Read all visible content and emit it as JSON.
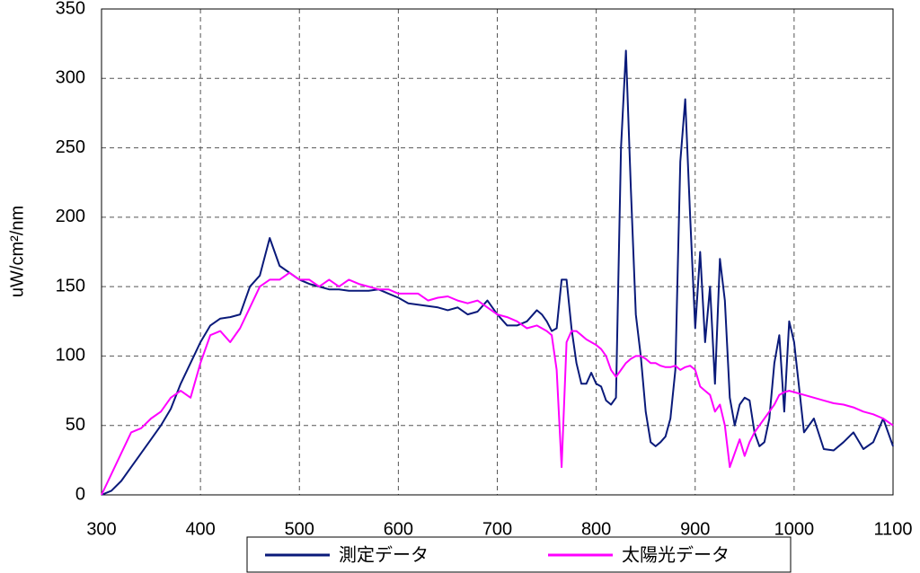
{
  "chart_data": {
    "type": "line",
    "y_label": "uW/cm²/nm",
    "x": [
      300,
      310,
      320,
      330,
      340,
      350,
      360,
      370,
      380,
      390,
      400,
      410,
      420,
      430,
      440,
      450,
      460,
      470,
      480,
      490,
      500,
      510,
      520,
      530,
      540,
      550,
      560,
      570,
      580,
      590,
      600,
      610,
      620,
      630,
      640,
      650,
      660,
      670,
      680,
      690,
      700,
      710,
      720,
      730,
      740,
      745,
      750,
      755,
      760,
      765,
      770,
      775,
      780,
      785,
      790,
      795,
      800,
      805,
      810,
      815,
      820,
      825,
      830,
      835,
      840,
      845,
      850,
      855,
      860,
      865,
      870,
      875,
      880,
      885,
      890,
      895,
      900,
      905,
      910,
      915,
      920,
      925,
      930,
      935,
      940,
      945,
      950,
      955,
      960,
      965,
      970,
      975,
      980,
      985,
      990,
      995,
      1000,
      1010,
      1020,
      1030,
      1040,
      1050,
      1060,
      1070,
      1080,
      1090,
      1100
    ],
    "series": [
      {
        "name": "測定データ",
        "color": "#0a1a7a",
        "values": [
          0,
          3,
          10,
          20,
          30,
          40,
          50,
          62,
          80,
          95,
          110,
          122,
          127,
          128,
          130,
          150,
          158,
          185,
          165,
          160,
          155,
          152,
          150,
          148,
          148,
          147,
          147,
          147,
          148,
          145,
          142,
          138,
          137,
          136,
          135,
          133,
          135,
          130,
          132,
          140,
          130,
          122,
          122,
          125,
          133,
          130,
          125,
          118,
          120,
          155,
          155,
          120,
          95,
          80,
          80,
          88,
          80,
          78,
          68,
          65,
          70,
          250,
          320,
          220,
          130,
          100,
          60,
          38,
          35,
          38,
          42,
          55,
          90,
          240,
          285,
          200,
          120,
          175,
          110,
          150,
          80,
          170,
          140,
          70,
          50,
          65,
          70,
          68,
          45,
          35,
          38,
          55,
          95,
          115,
          60,
          125,
          110,
          45,
          55,
          33,
          32,
          38,
          45,
          33,
          38,
          55,
          35
        ]
      },
      {
        "name": "太陽光データ",
        "color": "#ff00ff",
        "values": [
          0,
          15,
          30,
          45,
          48,
          55,
          60,
          70,
          75,
          70,
          95,
          115,
          118,
          110,
          120,
          135,
          150,
          155,
          155,
          160,
          155,
          155,
          150,
          155,
          150,
          155,
          152,
          150,
          148,
          148,
          145,
          145,
          145,
          140,
          142,
          143,
          140,
          138,
          140,
          135,
          130,
          128,
          125,
          120,
          122,
          120,
          118,
          115,
          90,
          20,
          110,
          118,
          118,
          115,
          112,
          110,
          108,
          105,
          100,
          90,
          85,
          90,
          95,
          98,
          100,
          100,
          98,
          95,
          95,
          93,
          92,
          92,
          93,
          90,
          92,
          93,
          90,
          78,
          75,
          72,
          60,
          65,
          50,
          20,
          30,
          40,
          28,
          38,
          45,
          50,
          55,
          60,
          65,
          72,
          74,
          75,
          74,
          72,
          70,
          68,
          66,
          65,
          63,
          60,
          58,
          55,
          50
        ]
      }
    ],
    "xlim": [
      300,
      1100
    ],
    "xticks": [
      300,
      400,
      500,
      600,
      700,
      800,
      900,
      1000,
      1100
    ],
    "ylim": [
      0,
      350
    ],
    "yticks": [
      0,
      50,
      100,
      150,
      200,
      250,
      300,
      350
    ],
    "grid": true,
    "legend": "bottom"
  }
}
